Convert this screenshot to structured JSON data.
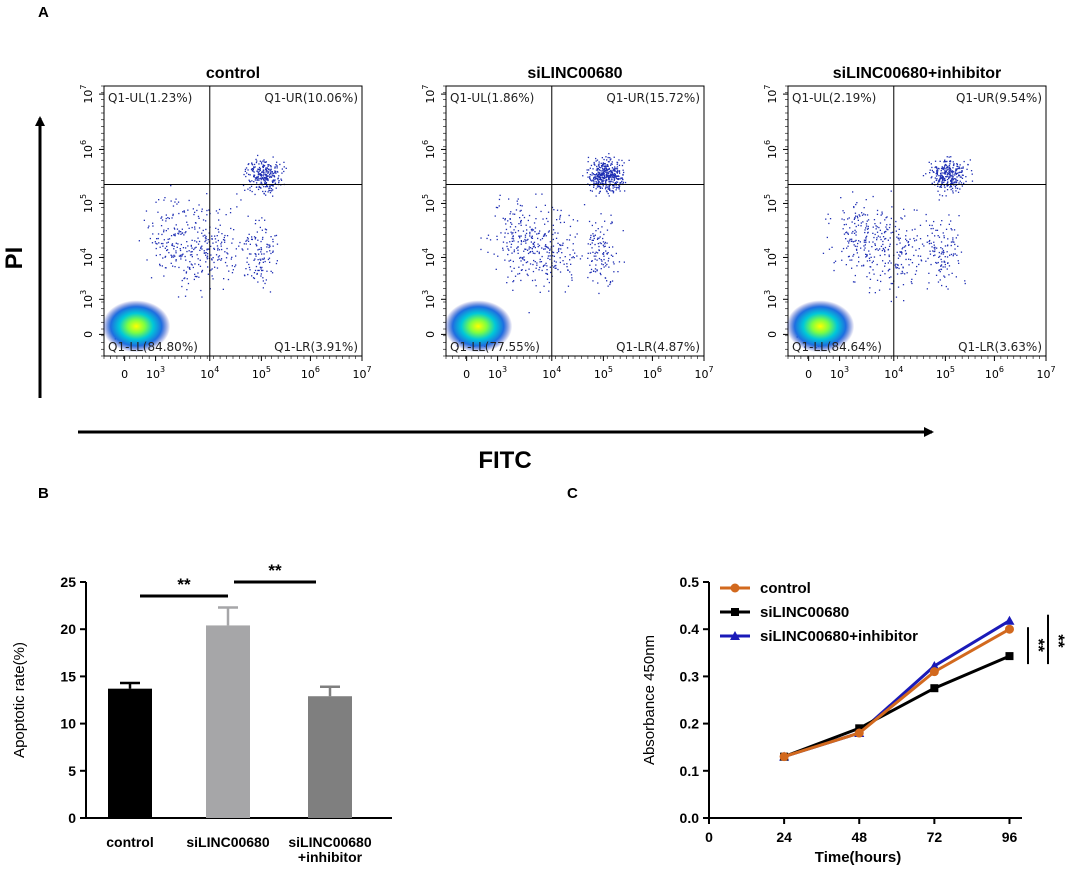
{
  "panel_labels": {
    "a": "A",
    "b": "B",
    "c": "C"
  },
  "colors": {
    "flow_dots": "#1f2fb4",
    "bar_control": "#000000",
    "bar_si": "#a6a6a8",
    "bar_inh": "#7f7f7f",
    "line_control": "#d2691e",
    "line_si": "#000000",
    "line_inh": "#1a1ab8"
  },
  "chart_data": [
    {
      "type": "scatter",
      "panel": "A",
      "xlabel": "FITC",
      "ylabel": "PI",
      "x_ticks": [
        {
          "base": "0",
          "exp": ""
        },
        {
          "base": "10",
          "exp": "3"
        },
        {
          "base": "10",
          "exp": "4"
        },
        {
          "base": "10",
          "exp": "5"
        },
        {
          "base": "10",
          "exp": "6"
        },
        {
          "base": "10",
          "exp": "7"
        }
      ],
      "y_ticks": [
        {
          "base": "0",
          "exp": ""
        },
        {
          "base": "10",
          "exp": "3"
        },
        {
          "base": "10",
          "exp": "4"
        },
        {
          "base": "10",
          "exp": "5"
        },
        {
          "base": "10",
          "exp": "6"
        },
        {
          "base": "10",
          "exp": "7"
        }
      ],
      "plots": [
        {
          "title": "control",
          "UL": "Q1-UL(1.23%)",
          "UR": "Q1-UR(10.06%)",
          "LL": "Q1-LL(84.80%)",
          "LR": "Q1-LR(3.91%)"
        },
        {
          "title": "siLINC00680",
          "UL": "Q1-UL(1.86%)",
          "UR": "Q1-UR(15.72%)",
          "LL": "Q1-LL(77.55%)",
          "LR": "Q1-LR(4.87%)"
        },
        {
          "title": "siLINC00680+inhibitor",
          "UL": "Q1-UL(2.19%)",
          "UR": "Q1-UR(9.54%)",
          "LL": "Q1-LL(84.64%)",
          "LR": "Q1-LR(3.63%)"
        }
      ]
    },
    {
      "type": "bar",
      "panel": "B",
      "title": "",
      "xlabel": "",
      "ylabel": "Apoptotic rate(%)",
      "ylim": [
        0,
        25
      ],
      "yticks": [
        0,
        5,
        10,
        15,
        20,
        25
      ],
      "categories": [
        "control",
        "siLINC00680",
        "siLINC00680\n+inhibitor"
      ],
      "category_lines": [
        [
          "control"
        ],
        [
          "siLINC00680"
        ],
        [
          "siLINC00680",
          "+inhibitor"
        ]
      ],
      "values": [
        13.7,
        20.4,
        12.9
      ],
      "errors": [
        0.6,
        1.9,
        1.0
      ],
      "significance": [
        {
          "from": 0,
          "to": 1,
          "label": "**"
        },
        {
          "from": 1,
          "to": 2,
          "label": "**"
        }
      ]
    },
    {
      "type": "line",
      "panel": "C",
      "title": "",
      "xlabel": "Time(hours)",
      "ylabel": "Absorbance 450nm",
      "x": [
        24,
        48,
        72,
        96
      ],
      "xticks": [
        0,
        24,
        48,
        72,
        96
      ],
      "xlim": [
        0,
        100
      ],
      "ylim": [
        0.0,
        0.5
      ],
      "yticks": [
        "0.0",
        "0.1",
        "0.2",
        "0.3",
        "0.4",
        "0.5"
      ],
      "series": [
        {
          "name": "control",
          "values": [
            0.13,
            0.18,
            0.31,
            0.4
          ],
          "marker": "circle"
        },
        {
          "name": "siLINC00680",
          "values": [
            0.13,
            0.19,
            0.275,
            0.343
          ],
          "marker": "square"
        },
        {
          "name": "siLINC00680+inhibitor",
          "values": [
            0.13,
            0.18,
            0.322,
            0.418
          ],
          "marker": "triangle"
        }
      ],
      "significance": [
        "**",
        "**"
      ]
    }
  ]
}
